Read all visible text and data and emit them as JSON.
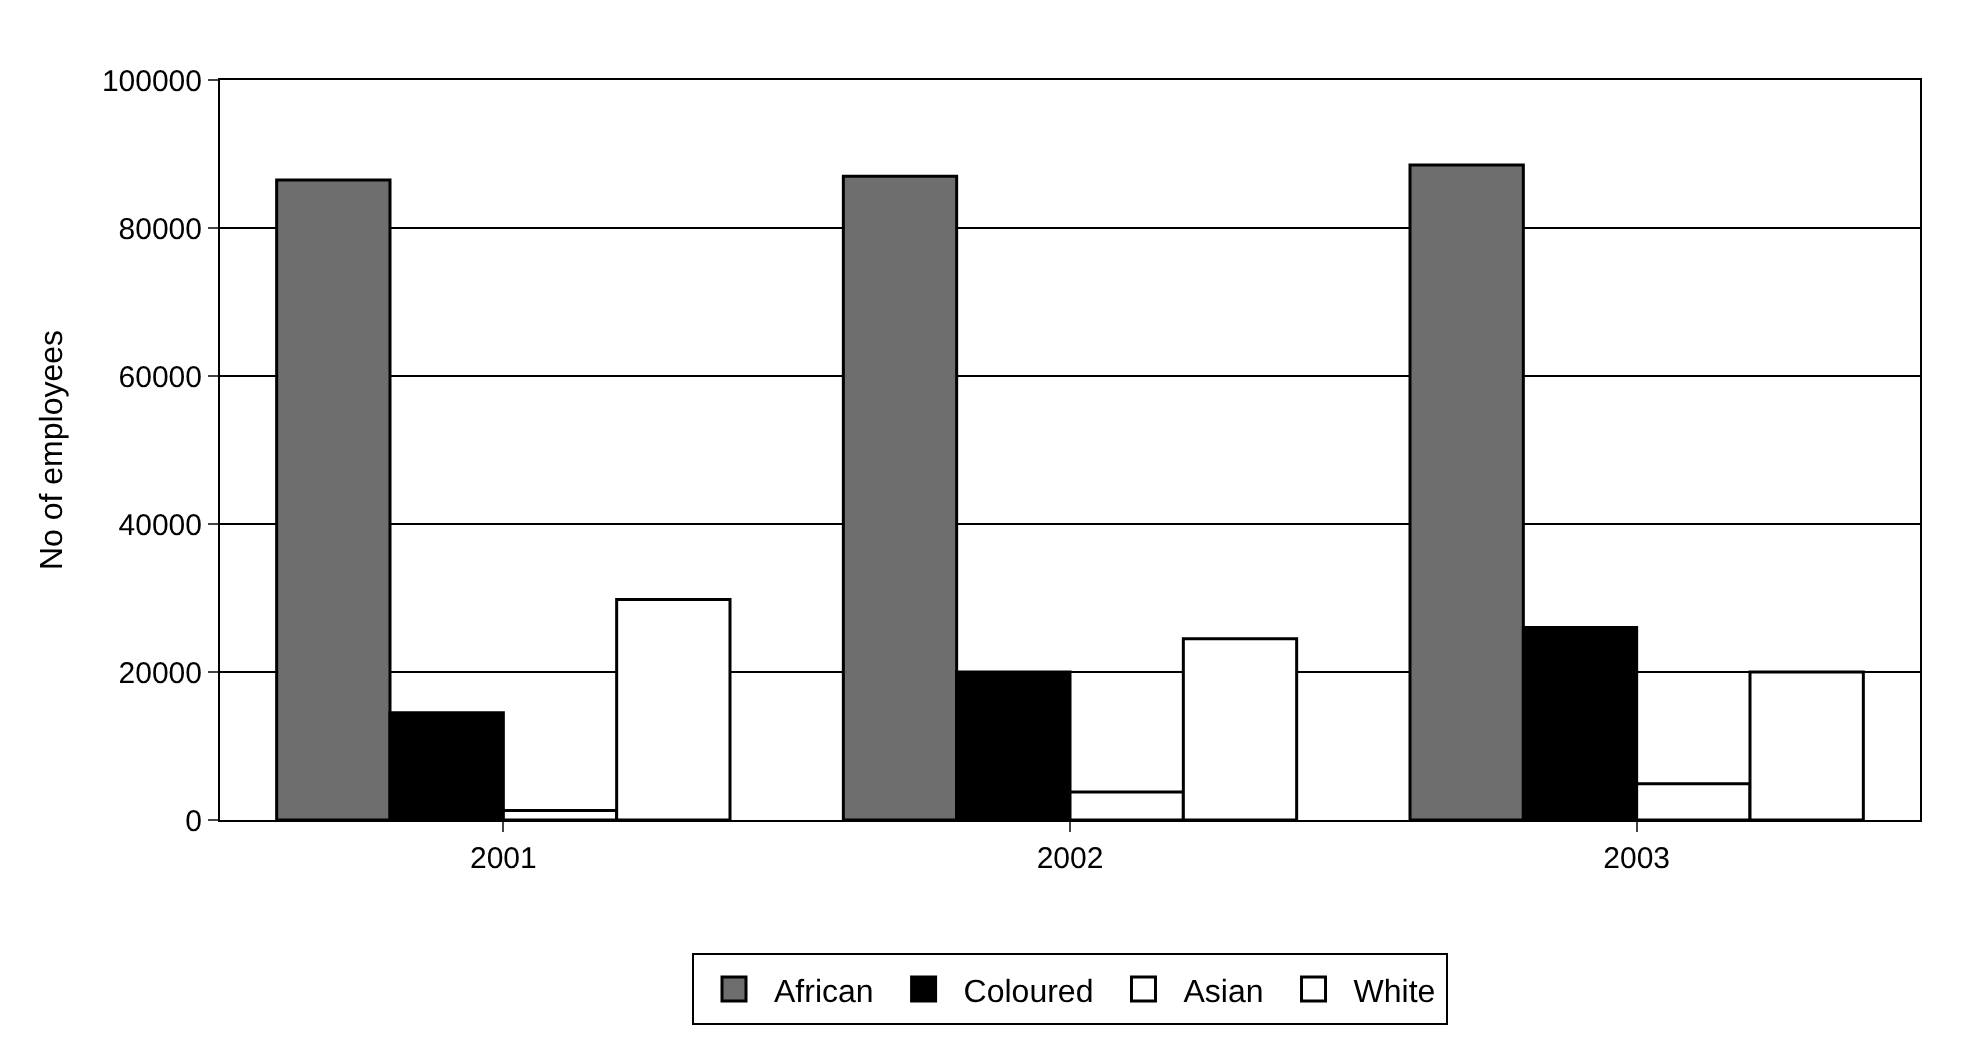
{
  "chart_data": {
    "type": "bar",
    "ylabel": "No of employees",
    "categories": [
      "2001",
      "2002",
      "2003"
    ],
    "series": [
      {
        "name": "African",
        "color": "#6e6e6e",
        "values": [
          86500,
          87000,
          88500
        ]
      },
      {
        "name": "Coloured",
        "color": "#000000",
        "values": [
          14500,
          20000,
          26000
        ]
      },
      {
        "name": "Asian",
        "color": "#ffffff",
        "values": [
          1300,
          3800,
          4900
        ]
      },
      {
        "name": "White",
        "color": "#ffffff",
        "values": [
          29800,
          24500,
          20000
        ]
      }
    ],
    "ylim": [
      0,
      100000
    ],
    "yticks": [
      0,
      20000,
      40000,
      60000,
      80000,
      100000
    ],
    "grid": "y",
    "legend": "bottom"
  }
}
